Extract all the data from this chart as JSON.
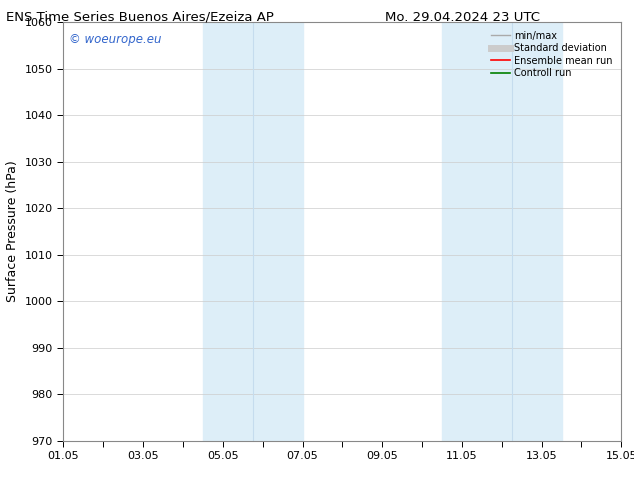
{
  "title_left": "ENS Time Series Buenos Aires/Ezeiza AP",
  "title_right": "Mo. 29.04.2024 23 UTC",
  "ylabel": "Surface Pressure (hPa)",
  "ylim": [
    970,
    1060
  ],
  "yticks": [
    970,
    980,
    990,
    1000,
    1010,
    1020,
    1030,
    1040,
    1050,
    1060
  ],
  "xlim": [
    0,
    14
  ],
  "xtick_label_positions": [
    0,
    2,
    4,
    6,
    8,
    10,
    12,
    14
  ],
  "xtick_all_positions": [
    0,
    1,
    2,
    3,
    4,
    5,
    6,
    7,
    8,
    9,
    10,
    11,
    12,
    13,
    14
  ],
  "xtick_labels": [
    "01.05",
    "03.05",
    "05.05",
    "07.05",
    "09.05",
    "11.05",
    "13.05",
    "15.05"
  ],
  "shade_bands": [
    {
      "x_start": 3.5,
      "x_end": 4.0,
      "color": "#ddeef8"
    },
    {
      "x_start": 4.0,
      "x_end": 5.5,
      "color": "#ddeef8"
    },
    {
      "x_start": 5.5,
      "x_end": 6.0,
      "color": "#ddeef8"
    },
    {
      "x_start": 9.5,
      "x_end": 10.5,
      "color": "#ddeef8"
    },
    {
      "x_start": 10.5,
      "x_end": 12.5,
      "color": "#ddeef8"
    }
  ],
  "shade_bands2": [
    {
      "x_start": 3.5,
      "x_end": 6.0,
      "color": "#ddeef8"
    },
    {
      "x_start": 9.5,
      "x_end": 12.5,
      "color": "#ddeef8"
    }
  ],
  "watermark": "© woeurope.eu",
  "watermark_color": "#3366cc",
  "legend_items": [
    {
      "label": "min/max",
      "color": "#aaaaaa",
      "lw": 1.0,
      "ls": "-"
    },
    {
      "label": "Standard deviation",
      "color": "#cccccc",
      "lw": 5,
      "ls": "-"
    },
    {
      "label": "Ensemble mean run",
      "color": "#ff0000",
      "lw": 1.2,
      "ls": "-"
    },
    {
      "label": "Controll run",
      "color": "#008000",
      "lw": 1.2,
      "ls": "-"
    }
  ],
  "bg_color": "#ffffff",
  "plot_bg_color": "#ffffff",
  "title_fontsize": 9.5,
  "tick_fontsize": 8,
  "ylabel_fontsize": 9
}
